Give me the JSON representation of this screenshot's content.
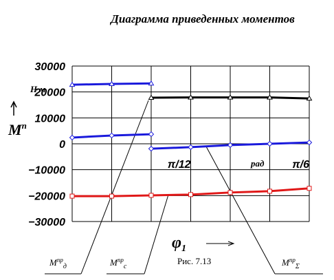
{
  "chart_data": {
    "type": "line",
    "title": "Диаграмма приведенных моментов",
    "y_label": {
      "main": "M",
      "sup": "п"
    },
    "y_units": "Н м",
    "x_label": {
      "main": "φ",
      "sub": "1"
    },
    "x_units": "рад",
    "caption": "Рис. 7.13",
    "xlim": [
      0,
      0.5236
    ],
    "xticks": [
      {
        "value": 0.2618,
        "label": "π/12"
      },
      {
        "value": 0.5236,
        "label": "π/6"
      }
    ],
    "ylim": [
      -30000,
      30000
    ],
    "yticks": [
      {
        "value": 30000,
        "label": "30000"
      },
      {
        "value": 20000,
        "label": "20000"
      },
      {
        "value": 10000,
        "label": "10000"
      },
      0,
      {
        "value": -10000,
        "label": "−10000"
      },
      {
        "value": -20000,
        "label": "−20000"
      },
      {
        "value": -30000,
        "label": "−30000"
      }
    ],
    "grid": true,
    "series": [
      {
        "color": "#1a1adc",
        "marker": "triangle",
        "x": [
          0,
          0.0873,
          0.1745
        ],
        "values": [
          22800,
          23100,
          23300
        ]
      },
      {
        "color": "#000000",
        "marker": "triangle",
        "x": [
          0.1745,
          0.2618,
          0.3491,
          0.4363,
          0.5236
        ],
        "values": [
          17800,
          17900,
          17900,
          17900,
          17500
        ]
      },
      {
        "color": "#1a1adc",
        "marker": "diamond",
        "x": [
          0,
          0.0873,
          0.1745
        ],
        "values": [
          2400,
          3200,
          3700
        ]
      },
      {
        "color": "#1a1adc",
        "marker": "diamond",
        "x": [
          0.1745,
          0.2618,
          0.3491,
          0.4363,
          0.5236
        ],
        "values": [
          -1900,
          -1300,
          -500,
          0,
          500
        ]
      },
      {
        "color": "#e01818",
        "marker": "square",
        "x": [
          0,
          0.0873,
          0.1745,
          0.2618,
          0.3491,
          0.4363,
          0.5236
        ],
        "values": [
          -20200,
          -20200,
          -19900,
          -19600,
          -18800,
          -18300,
          -17200
        ]
      }
    ],
    "annotations": [
      {
        "main": "M",
        "sup": "пр",
        "sub": "д"
      },
      {
        "main": "M",
        "sup": "пр",
        "sub": "с"
      },
      {
        "main": "M",
        "sup": "пр",
        "sub": "Σ"
      }
    ]
  }
}
